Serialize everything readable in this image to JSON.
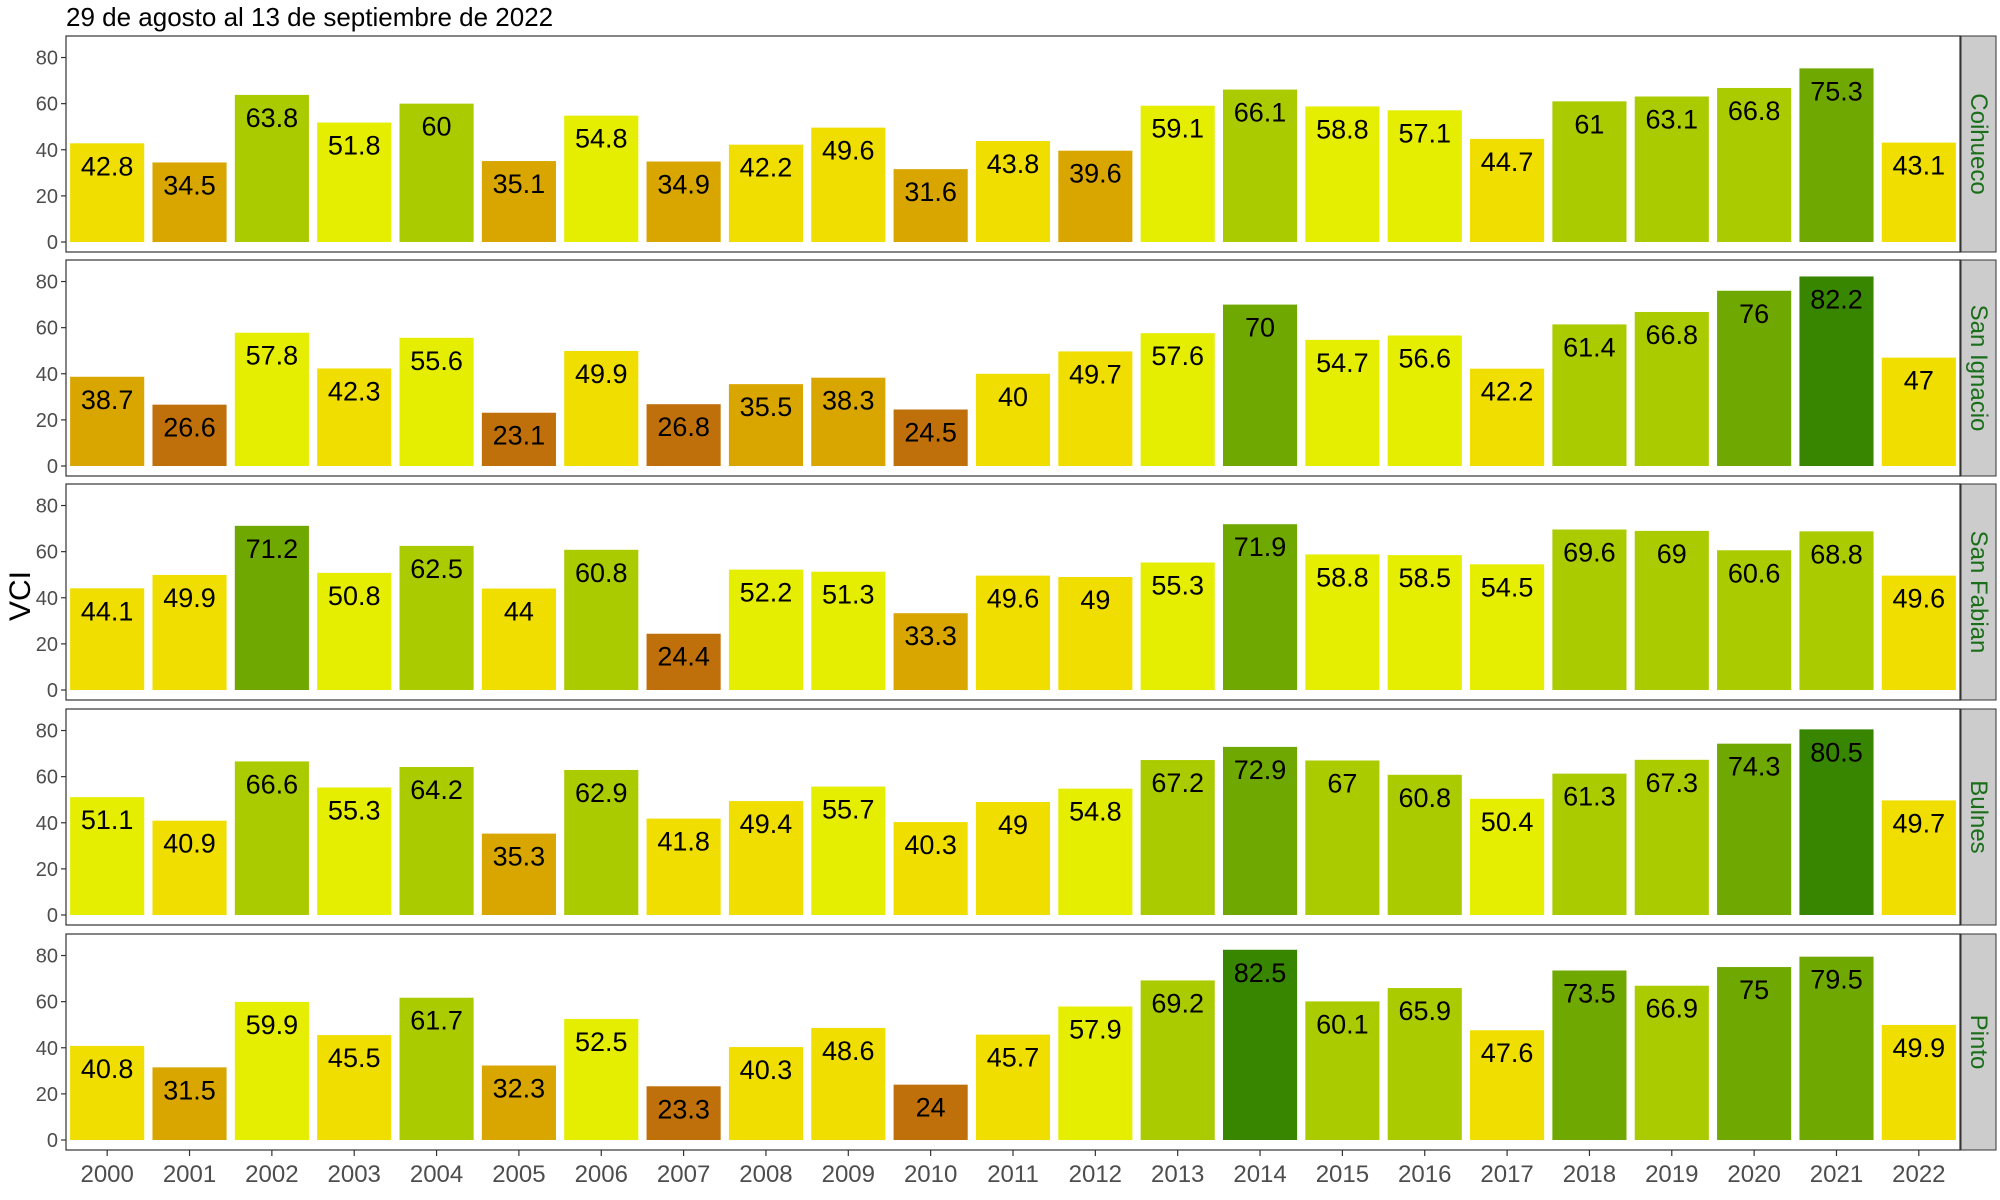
{
  "chart_data": {
    "type": "bar",
    "title": "29 de agosto al 13 de septiembre de 2022",
    "ylabel": "VCI",
    "xlabel": "",
    "ylim": [
      0,
      85
    ],
    "yticks": [
      0,
      20,
      40,
      60,
      80
    ],
    "grid": false,
    "categories": [
      "2000",
      "2001",
      "2002",
      "2003",
      "2004",
      "2005",
      "2006",
      "2007",
      "2008",
      "2009",
      "2010",
      "2011",
      "2012",
      "2013",
      "2014",
      "2015",
      "2016",
      "2017",
      "2018",
      "2019",
      "2020",
      "2021",
      "2022"
    ],
    "color_scale": [
      {
        "min": 0,
        "max": 30,
        "color": "#c0700a"
      },
      {
        "min": 30,
        "max": 40,
        "color": "#d9a600"
      },
      {
        "min": 40,
        "max": 50,
        "color": "#f0de00"
      },
      {
        "min": 50,
        "max": 60,
        "color": "#e5ed00"
      },
      {
        "min": 60,
        "max": 70,
        "color": "#a9cb00"
      },
      {
        "min": 70,
        "max": 80,
        "color": "#6fa800"
      },
      {
        "min": 80,
        "max": 100,
        "color": "#388600"
      }
    ],
    "panel_strip_color": "#cccccc",
    "strip_text_color": "#1a6e1a",
    "series": [
      {
        "name": "Coihueco",
        "values": [
          42.8,
          34.5,
          63.8,
          51.8,
          60,
          35.1,
          54.8,
          34.9,
          42.2,
          49.6,
          31.6,
          43.8,
          39.6,
          59.1,
          66.1,
          58.8,
          57.1,
          44.7,
          61,
          63.1,
          66.8,
          75.3,
          43.1
        ]
      },
      {
        "name": "San Ignacio",
        "values": [
          38.7,
          26.6,
          57.8,
          42.3,
          55.6,
          23.1,
          49.9,
          26.8,
          35.5,
          38.3,
          24.5,
          40,
          49.7,
          57.6,
          70,
          54.7,
          56.6,
          42.2,
          61.4,
          66.8,
          76,
          82.2,
          47
        ]
      },
      {
        "name": "San Fabian",
        "values": [
          44.1,
          49.9,
          71.2,
          50.8,
          62.5,
          44,
          60.8,
          24.4,
          52.2,
          51.3,
          33.3,
          49.6,
          49,
          55.3,
          71.9,
          58.8,
          58.5,
          54.5,
          69.6,
          69,
          60.6,
          68.8,
          49.6
        ]
      },
      {
        "name": "Bulnes",
        "values": [
          51.1,
          40.9,
          66.6,
          55.3,
          64.2,
          35.3,
          62.9,
          41.8,
          49.4,
          55.7,
          40.3,
          49,
          54.8,
          67.2,
          72.9,
          67,
          60.8,
          50.4,
          61.3,
          67.3,
          74.3,
          80.5,
          49.7
        ]
      },
      {
        "name": "Pinto",
        "values": [
          40.8,
          31.5,
          59.9,
          45.5,
          61.7,
          32.3,
          52.5,
          23.3,
          40.3,
          48.6,
          24,
          45.7,
          57.9,
          69.2,
          82.5,
          60.1,
          65.9,
          47.6,
          73.5,
          66.9,
          75,
          79.5,
          49.9
        ]
      }
    ]
  }
}
